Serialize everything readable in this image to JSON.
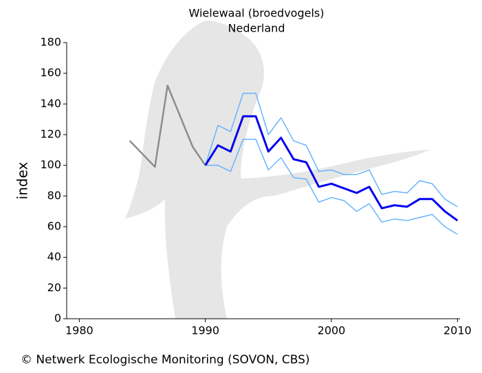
{
  "chart_data": {
    "type": "line",
    "title": "Wielewaal (broedvogels)",
    "subtitle": "Nederland",
    "y_label": "index",
    "footer": "© Netwerk Ecologische Monitoring (SOVON, CBS)",
    "xlim": [
      1979,
      2010.2
    ],
    "xticks": [
      1980,
      1990,
      2000,
      2010
    ],
    "ylim": [
      0,
      180
    ],
    "yticks": [
      0,
      20,
      40,
      60,
      80,
      100,
      120,
      140,
      160,
      180
    ],
    "series": [
      {
        "color": "#8c8c8c",
        "width": 2.5,
        "x": [
          1984,
          1986,
          1987,
          1989,
          1990
        ],
        "values": [
          116,
          99,
          152,
          112,
          100
        ]
      },
      {
        "color": "#66b3ff",
        "width": 1.5,
        "x": [
          1990,
          1991,
          1992,
          1993,
          1994,
          1995,
          1996,
          1997,
          1998,
          1999,
          2000,
          2001,
          2002,
          2003,
          2004,
          2005,
          2006,
          2007,
          2008,
          2009,
          2010
        ],
        "values": [
          100,
          126,
          122,
          147,
          147,
          120,
          131,
          116,
          113,
          96,
          97,
          94,
          94,
          97,
          81,
          83,
          82,
          90,
          88,
          78,
          73
        ]
      },
      {
        "color": "#66b3ff",
        "width": 1.5,
        "x": [
          1990,
          1991,
          1992,
          1993,
          1994,
          1995,
          1996,
          1997,
          1998,
          1999,
          2000,
          2001,
          2002,
          2003,
          2004,
          2005,
          2006,
          2007,
          2008,
          2009,
          2010
        ],
        "values": [
          100,
          100,
          96,
          117,
          117,
          97,
          105,
          92,
          91,
          76,
          79,
          77,
          70,
          75,
          63,
          65,
          64,
          66,
          68,
          60,
          55
        ]
      },
      {
        "color": "#0000ee",
        "width": 3,
        "x": [
          1990,
          1991,
          1992,
          1993,
          1994,
          1995,
          1996,
          1997,
          1998,
          1999,
          2000,
          2001,
          2002,
          2003,
          2004,
          2005,
          2006,
          2007,
          2008,
          2009,
          2010
        ],
        "values": [
          100,
          113,
          109,
          132,
          132,
          109,
          118,
          104,
          102,
          86,
          88,
          85,
          82,
          86,
          72,
          74,
          73,
          78,
          78,
          70,
          64
        ]
      }
    ]
  }
}
